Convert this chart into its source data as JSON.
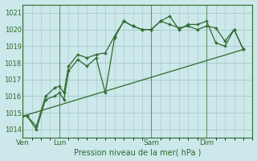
{
  "title": "",
  "xlabel": "Pression niveau de la mer( hPa )",
  "background_color": "#cce8ea",
  "grid_color": "#aacccc",
  "line_color": "#2d6a2d",
  "ylim": [
    1013.5,
    1021.5
  ],
  "yticks": [
    1014,
    1015,
    1016,
    1017,
    1018,
    1019,
    1020,
    1021
  ],
  "day_labels": [
    "Ven",
    "Lun",
    "Sam",
    "Dim"
  ],
  "day_positions": [
    0,
    8,
    28,
    40
  ],
  "xlim": [
    0,
    50
  ],
  "series1_x": [
    0,
    1,
    3,
    5,
    7,
    8,
    9,
    10,
    12,
    14,
    16,
    18,
    20,
    22,
    24,
    26,
    28,
    30,
    32,
    34,
    36,
    38,
    40,
    42,
    44,
    46,
    48
  ],
  "series1_y": [
    1014.8,
    1014.8,
    1014.0,
    1015.8,
    1016.0,
    1016.2,
    1015.8,
    1017.5,
    1018.2,
    1017.8,
    1018.3,
    1016.2,
    1019.5,
    1020.5,
    1020.2,
    1020.0,
    1020.0,
    1020.5,
    1020.8,
    1020.0,
    1020.3,
    1020.3,
    1020.5,
    1019.2,
    1019.0,
    1020.0,
    1018.8
  ],
  "series2_x": [
    0,
    1,
    3,
    5,
    7,
    8,
    9,
    10,
    12,
    14,
    16,
    18,
    20,
    22,
    24,
    26,
    28,
    30,
    32,
    34,
    36,
    38,
    40,
    42,
    44,
    46,
    48
  ],
  "series2_y": [
    1014.8,
    1014.8,
    1014.2,
    1016.0,
    1016.5,
    1016.6,
    1016.2,
    1017.8,
    1018.5,
    1018.3,
    1018.5,
    1018.6,
    1019.6,
    1020.5,
    1020.2,
    1020.0,
    1020.0,
    1020.5,
    1020.3,
    1020.1,
    1020.2,
    1020.0,
    1020.2,
    1020.1,
    1019.3,
    1020.0,
    1018.8
  ],
  "series3_x": [
    0,
    48
  ],
  "series3_y": [
    1014.8,
    1018.8
  ]
}
